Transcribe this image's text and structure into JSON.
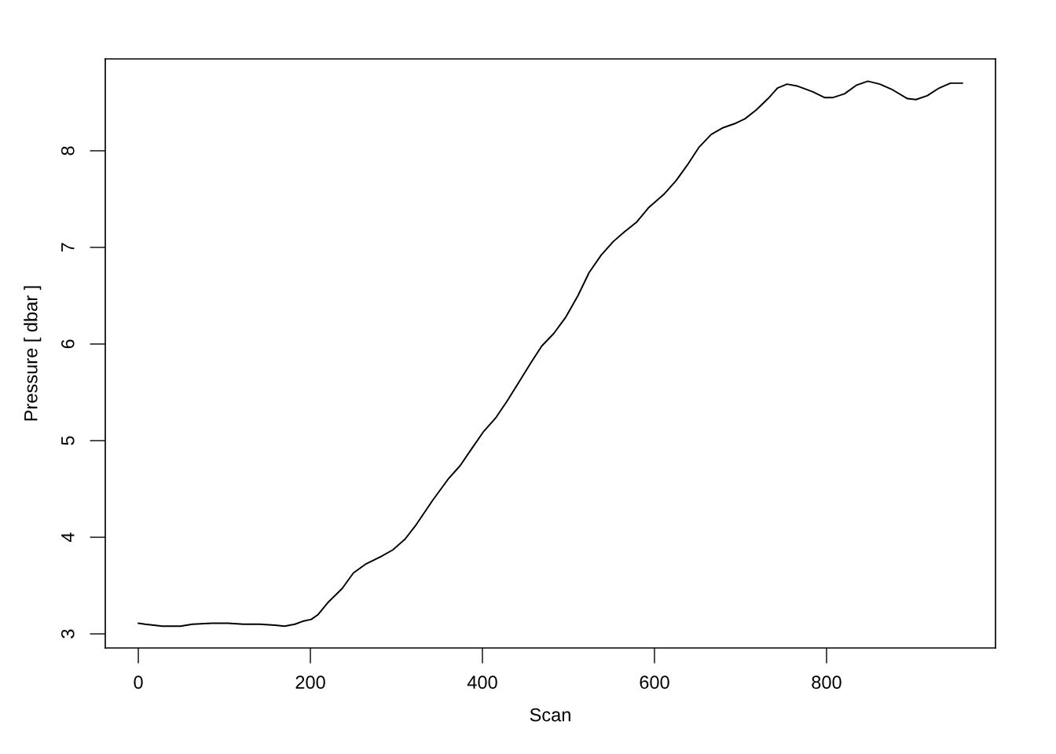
{
  "chart_data": {
    "type": "line",
    "xlabel": "Scan",
    "ylabel": "Pressure [ dbar ]",
    "x": [
      0,
      8,
      28,
      49,
      63,
      86,
      104,
      122,
      141,
      159,
      170,
      182,
      191,
      201,
      209,
      221,
      237,
      250,
      264,
      282,
      296,
      310,
      323,
      342,
      360,
      374,
      387,
      401,
      415,
      428,
      442,
      456,
      469,
      483,
      497,
      511,
      524,
      538,
      552,
      565,
      579,
      593,
      611,
      625,
      638,
      652,
      666,
      680,
      693,
      705,
      718,
      732,
      743,
      754,
      766,
      784,
      798,
      807,
      821,
      835,
      848,
      862,
      877,
      894,
      904,
      917,
      931,
      944,
      958
    ],
    "values": [
      3.11,
      3.1,
      3.08,
      3.08,
      3.1,
      3.11,
      3.11,
      3.1,
      3.1,
      3.09,
      3.08,
      3.1,
      3.13,
      3.15,
      3.2,
      3.33,
      3.47,
      3.63,
      3.72,
      3.8,
      3.87,
      3.98,
      4.13,
      4.38,
      4.6,
      4.74,
      4.91,
      5.09,
      5.23,
      5.4,
      5.6,
      5.8,
      5.98,
      6.11,
      6.28,
      6.5,
      6.74,
      6.92,
      7.06,
      7.16,
      7.26,
      7.41,
      7.55,
      7.69,
      7.85,
      8.04,
      8.17,
      8.24,
      8.28,
      8.33,
      8.42,
      8.54,
      8.65,
      8.69,
      8.67,
      8.61,
      8.55,
      8.55,
      8.59,
      8.68,
      8.72,
      8.69,
      8.63,
      8.54,
      8.53,
      8.57,
      8.65,
      8.7,
      8.7
    ],
    "color": "#000000",
    "line_style": "solid",
    "xlim": [
      -38.4,
      996.4
    ],
    "ylim": [
      2.854,
      8.951
    ],
    "xticks": [
      0,
      200,
      400,
      600,
      800
    ],
    "yticks": [
      3,
      4,
      5,
      6,
      7,
      8
    ],
    "grid": false
  }
}
